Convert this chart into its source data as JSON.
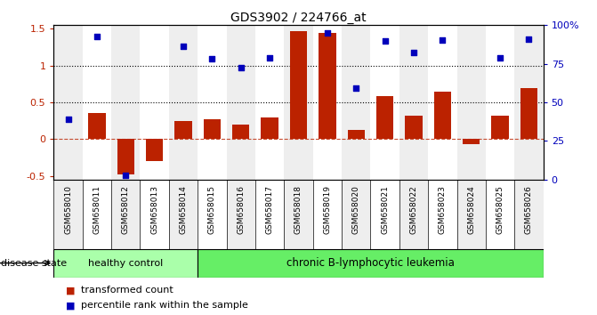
{
  "title": "GDS3902 / 224766_at",
  "samples": [
    "GSM658010",
    "GSM658011",
    "GSM658012",
    "GSM658013",
    "GSM658014",
    "GSM658015",
    "GSM658016",
    "GSM658017",
    "GSM658018",
    "GSM658019",
    "GSM658020",
    "GSM658021",
    "GSM658022",
    "GSM658023",
    "GSM658024",
    "GSM658025",
    "GSM658026"
  ],
  "bar_values": [
    0.0,
    0.36,
    -0.48,
    -0.3,
    0.25,
    0.27,
    0.2,
    0.3,
    1.47,
    1.45,
    0.12,
    0.58,
    0.32,
    0.65,
    -0.07,
    0.32,
    0.7
  ],
  "scatter_values": [
    0.27,
    1.4,
    -0.49,
    null,
    1.26,
    1.09,
    0.97,
    1.1,
    null,
    1.45,
    0.7,
    1.34,
    1.18,
    1.35,
    null,
    1.1,
    1.36
  ],
  "ylim_left": [
    -0.55,
    1.55
  ],
  "ylim_right": [
    0,
    100
  ],
  "yticks_left": [
    -0.5,
    0.0,
    0.5,
    1.0,
    1.5
  ],
  "ytick_labels_left": [
    "-0.5",
    "0",
    "0.5",
    "1",
    "1.5"
  ],
  "yticks_right": [
    0,
    25,
    50,
    75,
    100
  ],
  "ytick_labels_right": [
    "0",
    "25",
    "50",
    "75",
    "100%"
  ],
  "hlines": [
    0.5,
    1.0
  ],
  "bar_color": "#bb2200",
  "scatter_color": "#0000bb",
  "bar_zero_line": 0.0,
  "healthy_count": 5,
  "disease_label_healthy": "healthy control",
  "disease_label_leukemia": "chronic B-lymphocytic leukemia",
  "disease_state_label": "disease state",
  "legend_bar": "transformed count",
  "legend_scatter": "percentile rank within the sample",
  "healthy_color": "#aaffaa",
  "leukemia_color": "#66ee66",
  "tick_label_color_left": "#bb2200",
  "tick_label_color_right": "#0000bb",
  "background_color": "#ffffff",
  "sample_bg_even": "#eeeeee",
  "sample_bg_odd": "#ffffff"
}
